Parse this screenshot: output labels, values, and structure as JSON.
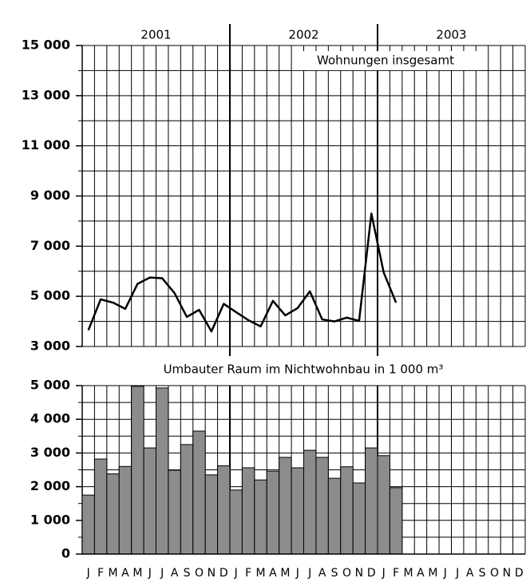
{
  "chart_data": [
    {
      "type": "line",
      "label": "Wohnungen insgesamt",
      "years": [
        "2001",
        "2002",
        "2003"
      ],
      "series": [
        {
          "color": "#000000",
          "values": [
            3650,
            4880,
            4750,
            4500,
            5500,
            5750,
            5720,
            5130,
            4180,
            4460,
            3600,
            4700,
            4370,
            4050,
            3800,
            4820,
            4240,
            4530,
            5200,
            4080,
            4000,
            4150,
            4020,
            8300,
            5950,
            4750,
            null,
            null,
            null,
            null,
            null,
            null,
            null,
            null,
            null,
            null
          ]
        }
      ],
      "ylim": [
        3000,
        15000
      ],
      "yticks": [
        {
          "value": 3000,
          "label": "3 000"
        },
        {
          "value": 5000,
          "label": "5 000"
        },
        {
          "value": 7000,
          "label": "7 000"
        },
        {
          "value": 9000,
          "label": "9 000"
        },
        {
          "value": 11000,
          "label": "11 000"
        },
        {
          "value": 13000,
          "label": "13 000"
        },
        {
          "value": 15000,
          "label": "15 000"
        }
      ],
      "grid": true
    },
    {
      "type": "bar",
      "title": "Umbauter Raum im Nichtwohnbau in 1 000 m³",
      "categories": [
        "J",
        "F",
        "M",
        "A",
        "M",
        "J",
        "J",
        "A",
        "S",
        "O",
        "N",
        "D",
        "J",
        "F",
        "M",
        "A",
        "M",
        "J",
        "J",
        "A",
        "S",
        "O",
        "N",
        "D",
        "J",
        "F",
        "M",
        "A",
        "M",
        "J",
        "J",
        "A",
        "S",
        "O",
        "N",
        "D"
      ],
      "values": [
        1750,
        2820,
        2380,
        2600,
        4980,
        3150,
        4930,
        2490,
        3250,
        3650,
        2350,
        2620,
        1900,
        2560,
        2200,
        2460,
        2870,
        2560,
        3080,
        2870,
        2250,
        2590,
        2110,
        3150,
        2920,
        1970,
        null,
        null,
        null,
        null,
        null,
        null,
        null,
        null,
        null,
        null
      ],
      "color": "#8c8c8c",
      "ylim": [
        0,
        5000
      ],
      "yticks": [
        0,
        {
          "value": 1000,
          "label": "1 000"
        },
        {
          "value": 2000,
          "label": "2 000"
        },
        {
          "value": 3000,
          "label": "3 000"
        },
        {
          "value": 4000,
          "label": "4 000"
        },
        {
          "value": 5000,
          "label": "5 000"
        }
      ],
      "grid": true
    }
  ]
}
